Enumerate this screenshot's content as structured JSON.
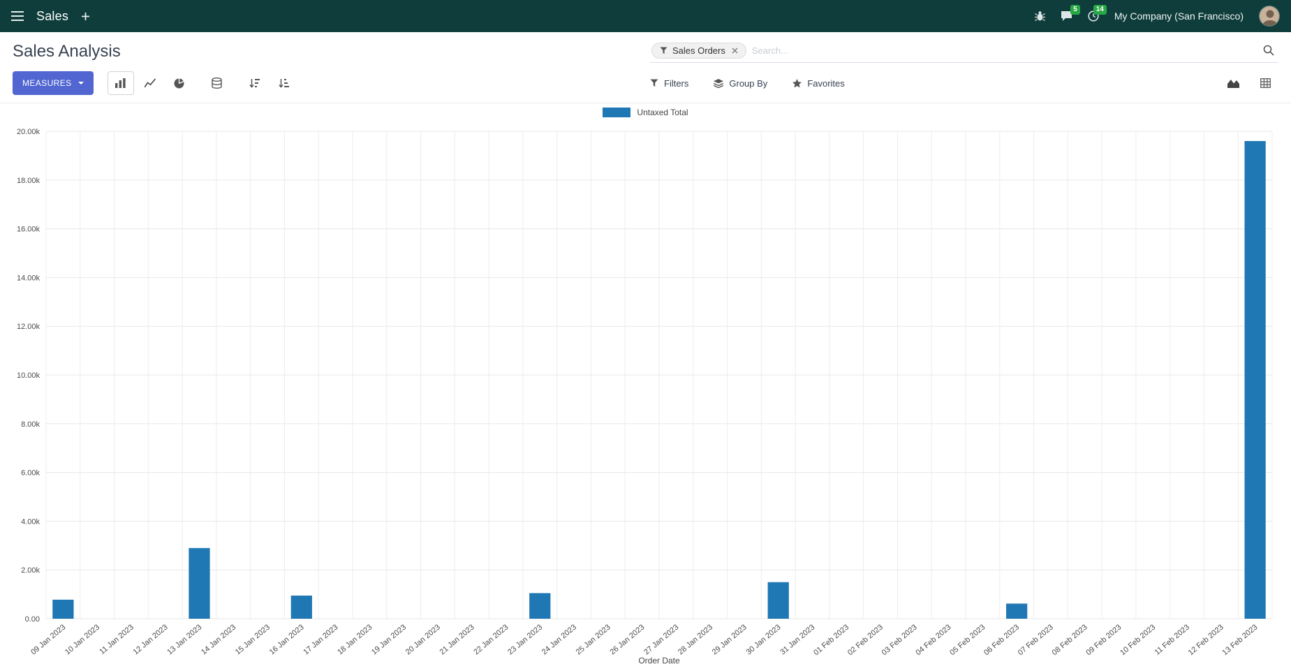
{
  "colors": {
    "topbar_bg": "#0e3d3b",
    "topbar_icon": "#dde6e6",
    "primary_button": "#5166d1",
    "badge_green": "#28a745",
    "bar_blue": "#1f77b4",
    "toolbar_icon": "#555555"
  },
  "topbar": {
    "app_name": "Sales",
    "messages_badge": "5",
    "activities_badge": "14",
    "company": "My Company (San Francisco)"
  },
  "control_panel": {
    "title": "Sales Analysis",
    "measures_label": "MEASURES",
    "filters_label": "Filters",
    "group_by_label": "Group By",
    "favorites_label": "Favorites",
    "search": {
      "facet_label": "Sales Orders",
      "placeholder": "Search..."
    }
  },
  "icons": {
    "menu-icon": "hamburger",
    "plus-icon": "plus",
    "bug-icon": "bug",
    "messages-icon": "chat-bubble",
    "activities-icon": "clock",
    "bar-chart-icon": "bar-chart",
    "line-chart-icon": "line-chart",
    "pie-chart-icon": "pie-chart",
    "stacked-icon": "database-stack",
    "sort-desc-icon": "sort-amount-desc",
    "sort-asc-icon": "sort-amount-asc",
    "filter-icon": "funnel",
    "group-by-icon": "layers",
    "favorites-icon": "star",
    "search-icon": "magnifier",
    "facet-remove-icon": "close-x",
    "graph-view-icon": "area-chart",
    "pivot-view-icon": "table-grid"
  },
  "chart_data": {
    "type": "bar",
    "title": "",
    "xlabel": "Order Date",
    "ylabel": "",
    "grid": true,
    "legend_position": "top",
    "ylim": [
      0,
      20000
    ],
    "y_tick_step": 2000,
    "y_tick_labels": [
      "0.00",
      "2.00k",
      "4.00k",
      "6.00k",
      "8.00k",
      "10.00k",
      "12.00k",
      "14.00k",
      "16.00k",
      "18.00k",
      "20.00k"
    ],
    "categories": [
      "09 Jan 2023",
      "10 Jan 2023",
      "11 Jan 2023",
      "12 Jan 2023",
      "13 Jan 2023",
      "14 Jan 2023",
      "15 Jan 2023",
      "16 Jan 2023",
      "17 Jan 2023",
      "18 Jan 2023",
      "19 Jan 2023",
      "20 Jan 2023",
      "21 Jan 2023",
      "22 Jan 2023",
      "23 Jan 2023",
      "24 Jan 2023",
      "25 Jan 2023",
      "26 Jan 2023",
      "27 Jan 2023",
      "28 Jan 2023",
      "29 Jan 2023",
      "30 Jan 2023",
      "31 Jan 2023",
      "01 Feb 2023",
      "02 Feb 2023",
      "03 Feb 2023",
      "04 Feb 2023",
      "05 Feb 2023",
      "06 Feb 2023",
      "07 Feb 2023",
      "08 Feb 2023",
      "09 Feb 2023",
      "10 Feb 2023",
      "11 Feb 2023",
      "12 Feb 2023",
      "13 Feb 2023"
    ],
    "series": [
      {
        "name": "Untaxed Total",
        "color": "#1f77b4",
        "values": [
          780,
          0,
          0,
          0,
          2900,
          0,
          0,
          950,
          0,
          0,
          0,
          0,
          0,
          0,
          1050,
          0,
          0,
          0,
          0,
          0,
          0,
          1500,
          0,
          0,
          0,
          0,
          0,
          0,
          620,
          0,
          0,
          0,
          0,
          0,
          0,
          19600
        ]
      }
    ]
  }
}
